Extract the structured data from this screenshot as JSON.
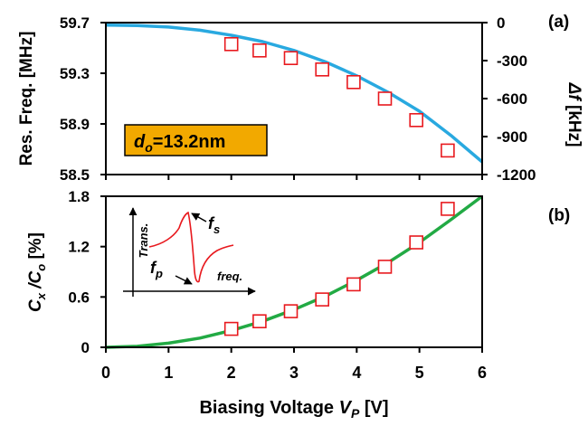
{
  "colors": {
    "series_a_line": "#29a9e0",
    "series_b_line": "#22aa44",
    "marker_edge": "#e8191e",
    "zero_ref_line": "#22aa44",
    "inset_curve": "#e8191e",
    "annotation_box": "#f2a900"
  },
  "panel_labels": {
    "a": "(a)",
    "b": "(b)"
  },
  "annotation": {
    "symbol": "d",
    "subscript": "o",
    "value": "=13.2nm"
  },
  "inset": {
    "y_label": "Trans.",
    "x_label": "freq.",
    "fs_label": "f",
    "fs_sub": "s",
    "fp_label": "f",
    "fp_sub": "p"
  },
  "chart_data": [
    {
      "type": "line",
      "panel": "a",
      "ylabel": "Res. Freq. [MHz]",
      "ylabel2_symbol": "Δf",
      "ylabel2_unit": " [kHz]",
      "xlim": [
        0,
        6
      ],
      "ylim": [
        58.5,
        59.7
      ],
      "y2lim": [
        -1200,
        0
      ],
      "yticks": [
        58.5,
        58.9,
        59.3,
        59.7
      ],
      "ytick_labels": [
        "58.5",
        "58.9",
        "59.3",
        "59.7"
      ],
      "y2ticks": [
        -1200,
        -900,
        -600,
        -300,
        0
      ],
      "y2tick_labels": [
        "-1200",
        "-900",
        "-600",
        "-300",
        "0"
      ],
      "reference_line_y": 59.7,
      "series": [
        {
          "kind": "line",
          "x": [
            0,
            0.5,
            1,
            1.5,
            2,
            2.5,
            3,
            3.5,
            4,
            4.5,
            5,
            5.5,
            6
          ],
          "y": [
            59.68,
            59.677,
            59.665,
            59.64,
            59.6,
            59.55,
            59.48,
            59.39,
            59.28,
            59.15,
            59.0,
            58.81,
            58.6
          ]
        },
        {
          "kind": "scatter",
          "x": [
            2,
            2.45,
            2.95,
            3.45,
            3.95,
            4.45,
            4.95,
            5.45
          ],
          "y": [
            59.53,
            59.48,
            59.42,
            59.33,
            59.23,
            59.1,
            58.93,
            58.69
          ]
        }
      ]
    },
    {
      "type": "line",
      "panel": "b",
      "ylabel_main": "C",
      "ylabel_sub1": "x",
      "ylabel_mid": " /C",
      "ylabel_sub2": "o",
      "ylabel_unit": " [%]",
      "xlabel_main": "Biasing Voltage ",
      "xlabel_symbol": "V",
      "xlabel_sub": "P",
      "xlabel_unit": " [V]",
      "xlim": [
        0,
        6
      ],
      "ylim": [
        0,
        1.8
      ],
      "xticks": [
        0,
        1,
        2,
        3,
        4,
        5,
        6
      ],
      "xtick_labels": [
        "0",
        "1",
        "2",
        "3",
        "4",
        "5",
        "6"
      ],
      "yticks": [
        0,
        0.6,
        1.2,
        1.8
      ],
      "ytick_labels": [
        "0",
        "0.6",
        "1.2",
        "1.8"
      ],
      "series": [
        {
          "kind": "line",
          "x": [
            0,
            0.5,
            1,
            1.5,
            2,
            2.5,
            3,
            3.5,
            4,
            4.5,
            5,
            5.5,
            6
          ],
          "y": [
            0,
            0.012,
            0.05,
            0.11,
            0.2,
            0.31,
            0.45,
            0.61,
            0.8,
            1.01,
            1.25,
            1.52,
            1.8
          ]
        },
        {
          "kind": "scatter",
          "x": [
            2,
            2.45,
            2.95,
            3.45,
            3.95,
            4.45,
            4.95,
            5.45
          ],
          "y": [
            0.22,
            0.31,
            0.43,
            0.57,
            0.75,
            0.96,
            1.25,
            1.65
          ]
        }
      ]
    }
  ]
}
